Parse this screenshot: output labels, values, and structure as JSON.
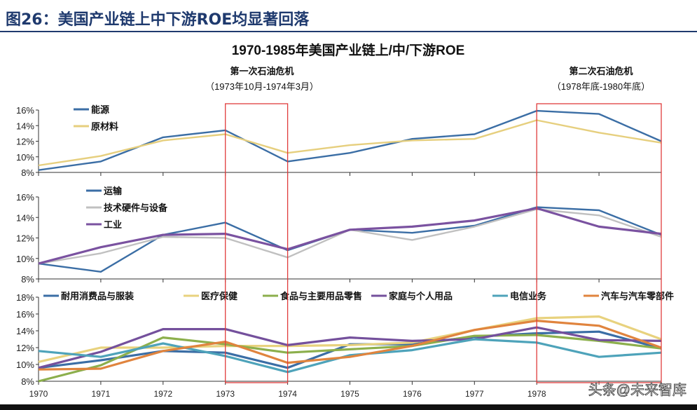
{
  "figure_title": "图26：美国产业链上中下游ROE均显著回落",
  "watermark": "头条@未来智库",
  "colors": {
    "energy": "#3b6ea5",
    "materials": "#e6cf7e",
    "transport": "#3b6ea5",
    "tech": "#c0c0c0",
    "industrial": "#7a52a0",
    "durables": "#3b6ea5",
    "healthcare": "#e8d27e",
    "food": "#8caf4c",
    "household": "#74509c",
    "telecom": "#4ea3ba",
    "auto": "#e0843e",
    "crisis_box": "#e03c3c"
  },
  "chart_data": [
    {
      "type": "line",
      "title": "1970-1985年美国产业链上/中/下游ROE",
      "annotations": [
        {
          "label": "第一次石油危机",
          "sub": "（1973年10月-1974年3月）",
          "x_range": [
            1973,
            1974
          ]
        },
        {
          "label": "第二次石油危机",
          "sub": "（1978年底-1980年底）",
          "x_range": [
            1978,
            1980
          ]
        }
      ],
      "x": [
        1970,
        1971,
        1972,
        1973,
        1974,
        1975,
        1976,
        1977,
        1978,
        1979,
        1980
      ],
      "x_tick_labels": [
        "1970",
        "1971",
        "1972",
        "1973",
        "1974",
        "1975",
        "1976",
        "1977",
        "1978"
      ],
      "panels": [
        {
          "ylim": [
            8,
            16
          ],
          "y_ticks": [
            "8%",
            "10%",
            "12%",
            "14%",
            "16%"
          ],
          "y_tick_values": [
            8,
            10,
            12,
            14,
            16
          ],
          "legend": "top-left",
          "series": [
            {
              "name": "能源",
              "key": "energy",
              "values": [
                8.3,
                9.4,
                12.5,
                13.4,
                9.4,
                10.5,
                12.3,
                12.9,
                15.9,
                15.5,
                12.0
              ]
            },
            {
              "name": "原材料",
              "key": "materials",
              "values": [
                8.9,
                10.1,
                12.1,
                12.9,
                10.5,
                11.5,
                12.1,
                12.3,
                14.7,
                13.1,
                11.8
              ]
            }
          ]
        },
        {
          "ylim": [
            8,
            16
          ],
          "y_ticks": [
            "8%",
            "10%",
            "12%",
            "14%",
            "16%"
          ],
          "y_tick_values": [
            8,
            10,
            12,
            14,
            16
          ],
          "legend": "top-left",
          "series": [
            {
              "name": "运输",
              "key": "transport",
              "values": [
                9.5,
                8.7,
                12.3,
                13.5,
                10.8,
                12.8,
                12.5,
                13.2,
                15.0,
                14.7,
                12.3
              ]
            },
            {
              "name": "技术硬件与设备",
              "key": "tech",
              "values": [
                9.5,
                10.5,
                12.1,
                12.0,
                10.1,
                12.8,
                11.8,
                13.1,
                14.8,
                14.2,
                12.1
              ]
            },
            {
              "name": "工业",
              "key": "industrial",
              "values": [
                9.5,
                11.1,
                12.3,
                12.4,
                10.9,
                12.8,
                13.1,
                13.7,
                14.9,
                13.1,
                12.4
              ]
            }
          ]
        },
        {
          "ylim": [
            8,
            18
          ],
          "y_ticks": [
            "8%",
            "10%",
            "12%",
            "14%",
            "16%",
            "18%"
          ],
          "y_tick_values": [
            8,
            10,
            12,
            14,
            16,
            18
          ],
          "legend": "top",
          "series": [
            {
              "name": "耐用消费品与服装",
              "key": "durables",
              "values": [
                9.6,
                10.5,
                11.6,
                11.4,
                9.6,
                12.4,
                12.4,
                13.3,
                13.7,
                13.9,
                11.9
              ]
            },
            {
              "name": "医疗保健",
              "key": "healthcare",
              "values": [
                10.3,
                12.0,
                12.0,
                12.2,
                12.2,
                12.3,
                12.6,
                14.1,
                15.5,
                15.7,
                13.0
              ]
            },
            {
              "name": "食品与主要用品零售",
              "key": "food",
              "values": [
                8.0,
                9.9,
                13.2,
                12.4,
                11.4,
                11.8,
                12.2,
                13.4,
                13.5,
                12.8,
                11.9
              ]
            },
            {
              "name": "家庭与个人用品",
              "key": "household",
              "values": [
                9.6,
                11.5,
                14.2,
                14.2,
                12.3,
                13.2,
                12.8,
                13.0,
                14.4,
                12.9,
                12.8
              ]
            },
            {
              "name": "电信业务",
              "key": "telecom",
              "values": [
                11.6,
                10.9,
                12.5,
                11.0,
                9.1,
                11.1,
                11.7,
                13.0,
                12.6,
                10.9,
                11.4
              ]
            },
            {
              "name": "汽车与汽车零部件",
              "key": "auto",
              "values": [
                9.4,
                9.5,
                11.6,
                12.7,
                10.2,
                10.9,
                12.2,
                14.1,
                15.2,
                14.6,
                12.0
              ]
            }
          ]
        }
      ]
    }
  ]
}
